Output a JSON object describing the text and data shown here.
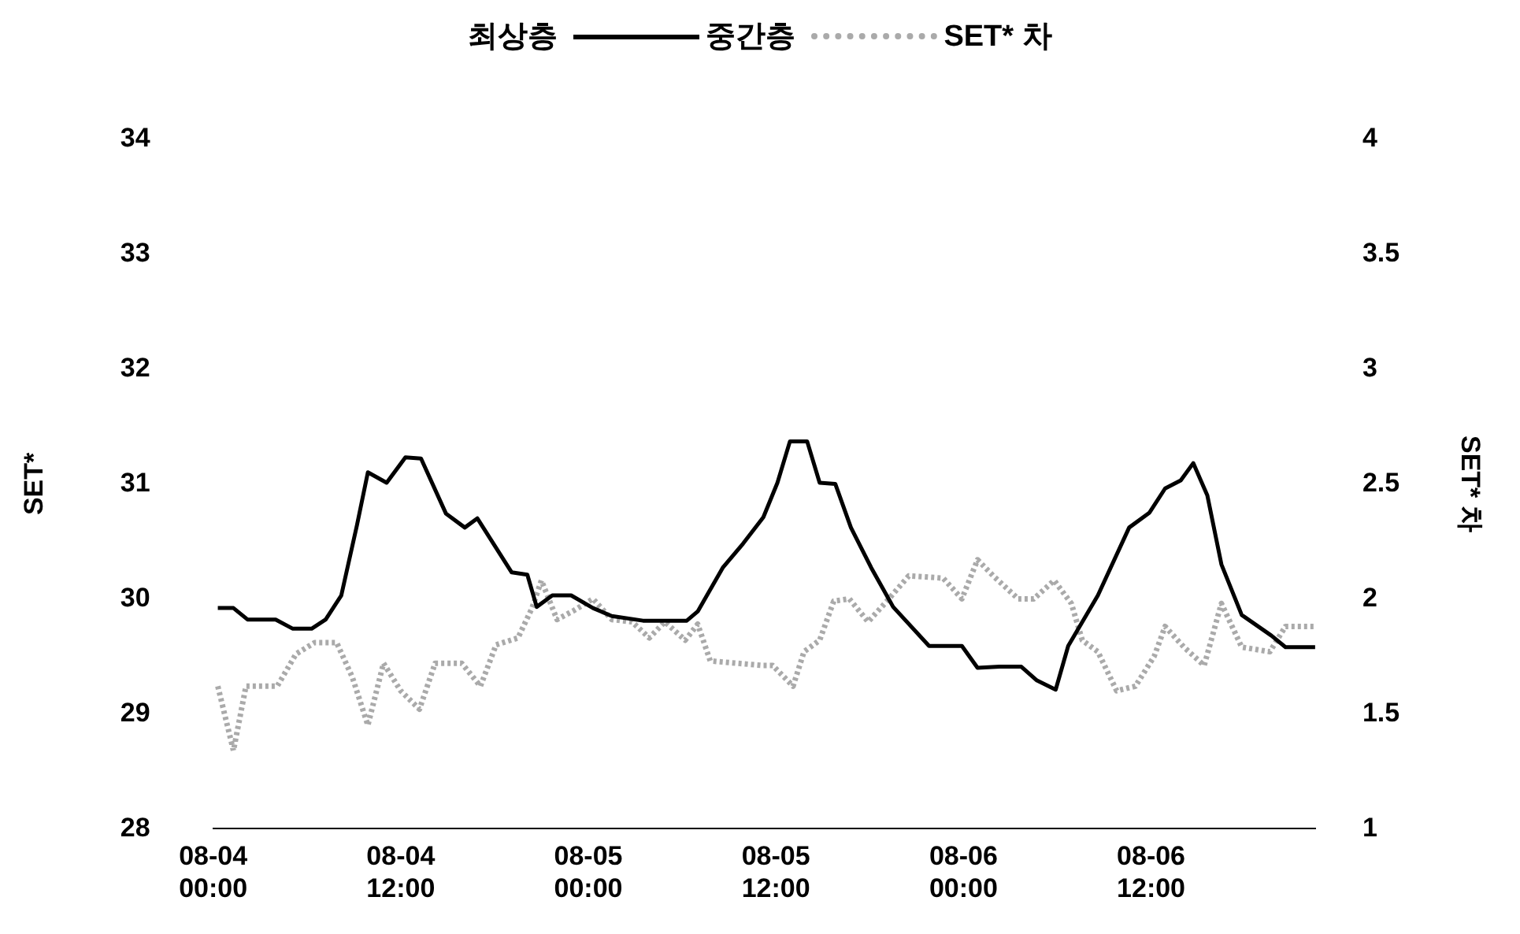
{
  "chart_data": {
    "type": "line",
    "ylabel": "SET*",
    "y2label": "SET* 차",
    "legend_title": "최상층",
    "legend": "top",
    "grid": false,
    "marker": "none",
    "xlim": [
      "--08-04T00:00",
      "--08-06T22:30"
    ],
    "xticks": [
      {
        "value": "--08-04T00:00",
        "label": "08-04 00:00"
      },
      {
        "value": "--08-04T12:00",
        "label": "08-04 12:00"
      },
      {
        "value": "--08-05T00:00",
        "label": "08-05 00:00"
      },
      {
        "value": "--08-05T12:00",
        "label": "08-05 12:00"
      },
      {
        "value": "--08-06T00:00",
        "label": "08-06 00:00"
      },
      {
        "value": "--08-06T12:00",
        "label": "08-06 12:00"
      }
    ],
    "ylim": [
      28,
      34
    ],
    "yticks": [
      28,
      29,
      30,
      31,
      32,
      33,
      34
    ],
    "y2lim": [
      1,
      4
    ],
    "y2ticks": [
      1,
      1.5,
      2,
      2.5,
      3,
      3.5,
      4
    ],
    "series": [
      {
        "name": "중간층",
        "color": "#000000",
        "line_style": "solid",
        "x": [
          "--08-04T00:18",
          "--08-04T01:18",
          "--08-04T02:12",
          "--08-04T04:00",
          "--08-04T05:06",
          "--08-04T06:18",
          "--08-04T07:12",
          "--08-04T08:12",
          "--08-04T09:12",
          "--08-04T09:54",
          "--08-04T11:06",
          "--08-04T12:18",
          "--08-04T13:18",
          "--08-04T14:54",
          "--08-04T16:06",
          "--08-04T16:54",
          "--08-04T19:06",
          "--08-04T20:06",
          "--08-04T20:42",
          "--08-04T21:42",
          "--08-04T22:54",
          "--08-05T00:18",
          "--08-05T01:30",
          "--08-05T03:30",
          "--08-05T06:18",
          "--08-05T07:00",
          "--08-05T08:36",
          "--08-05T09:54",
          "--08-05T11:12",
          "--08-05T12:06",
          "--08-05T12:54",
          "--08-05T14:00",
          "--08-05T14:48",
          "--08-05T15:48",
          "--08-05T16:48",
          "--08-05T18:06",
          "--08-05T19:30",
          "--08-05T21:48",
          "--08-05T23:54",
          "--08-06T00:54",
          "--08-06T02:18",
          "--08-06T03:42",
          "--08-06T04:42",
          "--08-06T05:54",
          "--08-06T06:42",
          "--08-06T08:36",
          "--08-06T10:36",
          "--08-06T11:54",
          "--08-06T12:54",
          "--08-06T13:54",
          "--08-06T14:42",
          "--08-06T15:36",
          "--08-06T16:30",
          "--08-06T17:48",
          "--08-06T19:42",
          "--08-06T20:36",
          "--08-06T22:30"
        ],
        "values": [
          29.92,
          29.92,
          29.82,
          29.82,
          29.74,
          29.74,
          29.82,
          30.03,
          30.64,
          31.1,
          31.01,
          31.23,
          31.22,
          30.74,
          30.62,
          30.7,
          30.23,
          30.21,
          29.93,
          30.03,
          30.03,
          29.92,
          29.85,
          29.81,
          29.81,
          29.89,
          30.27,
          30.48,
          30.71,
          31.01,
          31.37,
          31.37,
          31.01,
          31,
          30.62,
          30.27,
          29.93,
          29.59,
          29.59,
          29.4,
          29.41,
          29.41,
          29.29,
          29.21,
          29.59,
          30.03,
          30.62,
          30.75,
          30.96,
          31.03,
          31.18,
          30.9,
          30.3,
          29.86,
          29.68,
          29.58,
          29.58
        ]
      },
      {
        "name": "SET* 차",
        "color": "#aaaaaa",
        "line_style": "dotted",
        "axis": "y2",
        "x": [
          "--08-04T00:18",
          "--08-04T01:18",
          "--08-04T02:06",
          "--08-04T04:06",
          "--08-04T05:18",
          "--08-04T06:30",
          "--08-04T07:54",
          "--08-04T08:54",
          "--08-04T09:54",
          "--08-04T10:54",
          "--08-04T12:00",
          "--08-04T13:12",
          "--08-04T14:12",
          "--08-04T15:54",
          "--08-04T17:06",
          "--08-04T18:06",
          "--08-04T19:30",
          "--08-04T20:24",
          "--08-04T21:00",
          "--08-04T22:00",
          "--08-04T23:06",
          "--08-05T00:18",
          "--08-05T01:30",
          "--08-05T02:48",
          "--08-05T03:54",
          "--08-05T04:54",
          "--08-05T06:12",
          "--08-05T07:00",
          "--08-05T07:48",
          "--08-05T11:12",
          "--08-05T11:48",
          "--08-05T13:06",
          "--08-05T13:48",
          "--08-05T14:48",
          "--08-05T15:42",
          "--08-05T16:42",
          "--08-05T17:54",
          "--08-05T19:06",
          "--08-05T20:30",
          "--08-05T22:42",
          "--08-05T23:54",
          "--08-06T00:54",
          "--08-06T01:54",
          "--08-06T03:30",
          "--08-06T04:30",
          "--08-06T05:48",
          "--08-06T06:54",
          "--08-06T07:36",
          "--08-06T08:36",
          "--08-06T09:48",
          "--08-06T11:00",
          "--08-06T12:12",
          "--08-06T12:54",
          "--08-06T14:06",
          "--08-06T15:24",
          "--08-06T16:30",
          "--08-06T17:48",
          "--08-06T19:36",
          "--08-06T20:36",
          "--08-06T22:30"
        ],
        "values": [
          1.62,
          1.34,
          1.62,
          1.62,
          1.76,
          1.81,
          1.81,
          1.66,
          1.45,
          1.72,
          1.6,
          1.52,
          1.72,
          1.72,
          1.62,
          1.8,
          1.83,
          1.96,
          2.08,
          1.91,
          1.95,
          2,
          1.91,
          1.9,
          1.83,
          1.9,
          1.82,
          1.89,
          1.73,
          1.71,
          1.71,
          1.62,
          1.77,
          1.82,
          1.99,
          2,
          1.9,
          1.99,
          2.1,
          2.09,
          2,
          2.17,
          2.1,
          2,
          2,
          2.08,
          1.98,
          1.82,
          1.77,
          1.6,
          1.62,
          1.75,
          1.88,
          1.79,
          1.71,
          1.98,
          1.79,
          1.77,
          1.88,
          1.88
        ]
      }
    ]
  }
}
